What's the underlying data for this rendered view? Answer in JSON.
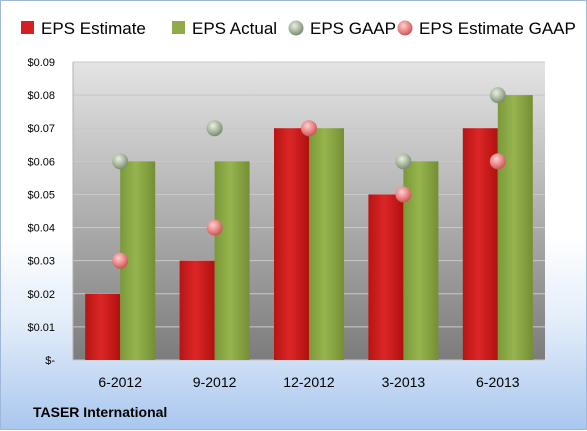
{
  "chart_data": {
    "type": "bar",
    "categories": [
      "6-2012",
      "9-2012",
      "12-2012",
      "3-2013",
      "6-2013"
    ],
    "series": [
      {
        "name": "EPS Estimate",
        "kind": "bar",
        "values": [
          0.02,
          0.03,
          0.07,
          0.05,
          0.07
        ],
        "color": "#d42020"
      },
      {
        "name": "EPS Actual",
        "kind": "bar",
        "values": [
          0.06,
          0.06,
          0.07,
          0.06,
          0.08
        ],
        "color": "#8fac48"
      },
      {
        "name": "EPS GAAP",
        "kind": "marker",
        "values": [
          0.06,
          0.07,
          0.07,
          0.06,
          0.08
        ],
        "color": "#9aab90"
      },
      {
        "name": "EPS Estimate GAAP",
        "kind": "marker",
        "values": [
          0.03,
          0.04,
          0.07,
          0.05,
          0.06
        ],
        "color": "#e88080"
      }
    ],
    "ylim": [
      0,
      0.09
    ],
    "yticks": [
      "$-",
      "$0.01",
      "$0.02",
      "$0.03",
      "$0.04",
      "$0.05",
      "$0.06",
      "$0.07",
      "$0.08",
      "$0.09"
    ],
    "grid": true,
    "legend_position": "top",
    "footer": "TASER International"
  }
}
